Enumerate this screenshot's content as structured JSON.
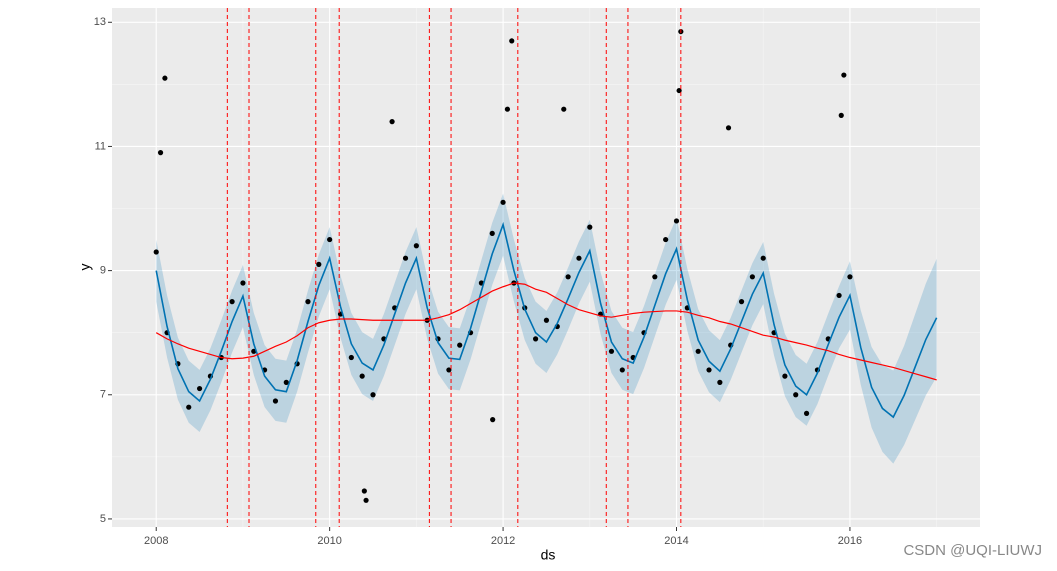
{
  "chart_data": {
    "type": "forecast",
    "x_label": "ds",
    "y_label": "y",
    "watermark": "CSDN @UQI-LIUWJ",
    "xlim": [
      2007.49,
      2017.5
    ],
    "ylim": [
      4.87,
      13.23
    ],
    "xticks": [
      2008,
      2010,
      2012,
      2014,
      2016
    ],
    "yticks": [
      5,
      7,
      9,
      11,
      13
    ],
    "xminor": [
      2009,
      2011,
      2013,
      2015,
      2017
    ],
    "yminor": [
      6,
      8,
      10,
      12
    ],
    "grid": true,
    "forecast_color": "#0072b2",
    "trend_color": "#ff0000",
    "point_color": "#000000",
    "changepoint_color": "#ff0000",
    "x": [
      2008.0,
      2008.125,
      2008.25,
      2008.375,
      2008.5,
      2008.625,
      2008.75,
      2008.875,
      2009.0,
      2009.125,
      2009.25,
      2009.375,
      2009.5,
      2009.625,
      2009.75,
      2009.875,
      2010.0,
      2010.125,
      2010.25,
      2010.375,
      2010.5,
      2010.625,
      2010.75,
      2010.875,
      2011.0,
      2011.125,
      2011.25,
      2011.375,
      2011.5,
      2011.625,
      2011.75,
      2011.875,
      2012.0,
      2012.125,
      2012.25,
      2012.375,
      2012.5,
      2012.625,
      2012.75,
      2012.875,
      2013.0,
      2013.125,
      2013.25,
      2013.375,
      2013.5,
      2013.625,
      2013.75,
      2013.875,
      2014.0,
      2014.125,
      2014.25,
      2014.375,
      2014.5,
      2014.625,
      2014.75,
      2014.875,
      2015.0,
      2015.125,
      2015.25,
      2015.375,
      2015.5,
      2015.625,
      2015.75,
      2015.875,
      2016.0,
      2016.125,
      2016.25,
      2016.375,
      2016.5,
      2016.625,
      2016.75,
      2016.875,
      2017.0
    ],
    "yhat": [
      9.0,
      8.1,
      7.42,
      7.05,
      6.9,
      7.25,
      7.7,
      8.18,
      8.59,
      7.82,
      7.3,
      7.08,
      7.05,
      7.55,
      8.18,
      8.76,
      9.2,
      8.42,
      7.82,
      7.51,
      7.4,
      7.8,
      8.3,
      8.8,
      9.2,
      8.4,
      7.84,
      7.59,
      7.57,
      8.07,
      8.67,
      9.27,
      9.74,
      9.0,
      8.38,
      8.0,
      7.85,
      8.15,
      8.55,
      8.97,
      9.32,
      8.47,
      7.85,
      7.58,
      7.51,
      7.93,
      8.44,
      8.95,
      9.35,
      8.53,
      7.88,
      7.54,
      7.38,
      7.74,
      8.18,
      8.62,
      8.96,
      8.13,
      7.48,
      7.14,
      7.0,
      7.35,
      7.81,
      8.25,
      8.6,
      7.76,
      7.12,
      6.78,
      6.64,
      6.99,
      7.44,
      7.89,
      8.24
    ],
    "yhat_upper": [
      9.5,
      8.6,
      7.92,
      7.55,
      7.4,
      7.75,
      8.2,
      8.68,
      9.09,
      8.32,
      7.8,
      7.58,
      7.55,
      8.05,
      8.68,
      9.26,
      9.7,
      8.92,
      8.32,
      8.01,
      7.9,
      8.3,
      8.8,
      9.3,
      9.7,
      8.9,
      8.34,
      8.09,
      8.07,
      8.57,
      9.17,
      9.77,
      10.24,
      9.5,
      8.88,
      8.5,
      8.35,
      8.65,
      9.05,
      9.47,
      9.82,
      8.97,
      8.35,
      8.08,
      8.01,
      8.43,
      8.94,
      9.45,
      9.85,
      9.03,
      8.38,
      8.04,
      7.88,
      8.24,
      8.68,
      9.12,
      9.46,
      8.63,
      7.98,
      7.64,
      7.5,
      7.85,
      8.31,
      8.75,
      9.15,
      8.36,
      7.77,
      7.48,
      7.39,
      7.79,
      8.29,
      8.79,
      9.19
    ],
    "yhat_lower": [
      8.5,
      7.6,
      6.92,
      6.55,
      6.4,
      6.75,
      7.2,
      7.68,
      8.09,
      7.32,
      6.8,
      6.58,
      6.55,
      7.05,
      7.68,
      8.26,
      8.7,
      7.92,
      7.32,
      7.01,
      6.9,
      7.3,
      7.8,
      8.3,
      8.7,
      7.9,
      7.34,
      7.09,
      7.07,
      7.57,
      8.17,
      8.77,
      9.24,
      8.5,
      7.88,
      7.5,
      7.35,
      7.65,
      8.05,
      8.47,
      8.82,
      7.97,
      7.35,
      7.08,
      7.01,
      7.43,
      7.94,
      8.45,
      8.85,
      8.03,
      7.38,
      7.04,
      6.88,
      7.24,
      7.68,
      8.12,
      8.46,
      7.63,
      6.98,
      6.64,
      6.5,
      6.85,
      7.31,
      7.75,
      8.05,
      7.16,
      6.47,
      6.08,
      5.89,
      6.19,
      6.59,
      6.99,
      7.29
    ],
    "trend": [
      8.0,
      7.9,
      7.82,
      7.75,
      7.7,
      7.65,
      7.6,
      7.58,
      7.59,
      7.62,
      7.7,
      7.78,
      7.85,
      7.95,
      8.08,
      8.16,
      8.2,
      8.22,
      8.22,
      8.21,
      8.2,
      8.2,
      8.2,
      8.2,
      8.2,
      8.2,
      8.24,
      8.29,
      8.37,
      8.47,
      8.57,
      8.67,
      8.74,
      8.8,
      8.78,
      8.7,
      8.65,
      8.55,
      8.45,
      8.37,
      8.32,
      8.27,
      8.25,
      8.28,
      8.31,
      8.33,
      8.34,
      8.35,
      8.35,
      8.33,
      8.28,
      8.24,
      8.18,
      8.14,
      8.08,
      8.02,
      7.96,
      7.93,
      7.88,
      7.84,
      7.8,
      7.75,
      7.71,
      7.65,
      7.6,
      7.56,
      7.52,
      7.48,
      7.44,
      7.39,
      7.34,
      7.29,
      7.24
    ],
    "points": {
      "x": [
        2008.0,
        2008.125,
        2008.25,
        2008.375,
        2008.5,
        2008.625,
        2008.75,
        2008.875,
        2009.0,
        2009.125,
        2009.25,
        2009.375,
        2009.5,
        2009.625,
        2009.75,
        2009.875,
        2010.0,
        2010.125,
        2010.25,
        2010.375,
        2010.5,
        2010.625,
        2010.75,
        2010.875,
        2011.0,
        2011.125,
        2011.25,
        2011.375,
        2011.5,
        2011.625,
        2011.75,
        2011.875,
        2012.0,
        2012.125,
        2012.25,
        2012.375,
        2012.5,
        2012.625,
        2012.75,
        2012.875,
        2013.0,
        2013.125,
        2013.25,
        2013.375,
        2013.5,
        2013.625,
        2013.75,
        2013.875,
        2014.0,
        2014.125,
        2014.25,
        2014.375,
        2014.5,
        2014.625,
        2014.75,
        2014.875,
        2015.0,
        2015.125,
        2015.25,
        2015.375,
        2015.5,
        2015.625,
        2015.75,
        2015.875,
        2016.0,
        2008.1,
        2008.05,
        2010.42,
        2010.4,
        2010.72,
        2012.1,
        2012.05,
        2014.05,
        2014.03,
        2015.93,
        2015.9,
        2011.88,
        2014.6,
        2012.7
      ],
      "y": [
        9.3,
        8.0,
        7.5,
        6.8,
        7.1,
        7.3,
        7.6,
        8.5,
        8.8,
        7.7,
        7.4,
        6.9,
        7.2,
        7.5,
        8.5,
        9.1,
        9.5,
        8.3,
        7.6,
        7.3,
        7.0,
        7.9,
        8.4,
        9.2,
        9.4,
        8.2,
        7.9,
        7.4,
        7.8,
        8.0,
        8.8,
        9.6,
        10.1,
        8.8,
        8.4,
        7.9,
        8.2,
        8.1,
        8.9,
        9.2,
        9.7,
        8.3,
        7.7,
        7.4,
        7.6,
        8.0,
        8.9,
        9.5,
        9.8,
        8.4,
        7.7,
        7.4,
        7.2,
        7.8,
        8.5,
        8.9,
        9.2,
        8.0,
        7.3,
        7.0,
        6.7,
        7.4,
        7.9,
        8.6,
        8.9,
        12.1,
        10.9,
        5.3,
        5.45,
        11.4,
        12.7,
        11.6,
        12.85,
        11.9,
        12.15,
        11.5,
        6.6,
        11.3,
        11.6
      ]
    },
    "changepoints": [
      2008.82,
      2009.07,
      2009.84,
      2010.11,
      2011.15,
      2011.4,
      2012.17,
      2013.19,
      2013.44,
      2014.05
    ]
  }
}
